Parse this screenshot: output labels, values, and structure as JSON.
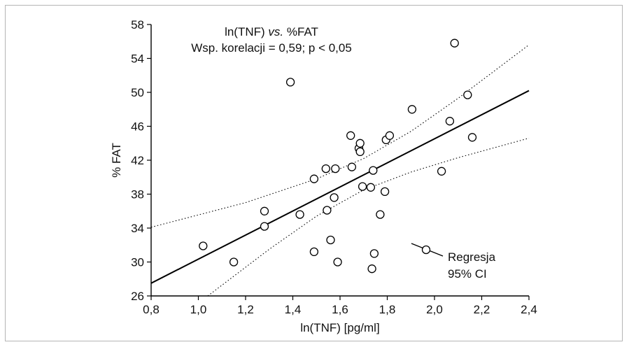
{
  "chart_data": {
    "type": "scatter",
    "title": "ln(TNF)",
    "title_italic": "vs.",
    "title_suffix": "%FAT",
    "subtitle": "Wsp. korelacji = 0,59; p < 0,05",
    "xlabel": "ln(TNF) [pg/ml]",
    "ylabel": "% FAT",
    "xlim": [
      0.8,
      2.4
    ],
    "ylim": [
      26,
      58
    ],
    "x_ticks": [
      0.8,
      1.0,
      1.2,
      1.4,
      1.6,
      1.8,
      2.0,
      2.2,
      2.4
    ],
    "x_tick_labels": [
      "0,8",
      "1,0",
      "1,2",
      "1,4",
      "1,6",
      "1,8",
      "2,0",
      "2,2",
      "2,4"
    ],
    "y_ticks": [
      26,
      30,
      34,
      38,
      42,
      46,
      50,
      54,
      58
    ],
    "y_tick_labels": [
      "26",
      "30",
      "34",
      "38",
      "42",
      "46",
      "50",
      "54",
      "58"
    ],
    "grid": false,
    "points": [
      {
        "x": 1.02,
        "y": 31.9
      },
      {
        "x": 1.15,
        "y": 30.0
      },
      {
        "x": 1.28,
        "y": 36.0
      },
      {
        "x": 1.28,
        "y": 34.2
      },
      {
        "x": 1.39,
        "y": 51.2
      },
      {
        "x": 1.43,
        "y": 35.6
      },
      {
        "x": 1.49,
        "y": 39.8
      },
      {
        "x": 1.49,
        "y": 31.2
      },
      {
        "x": 1.54,
        "y": 41.0
      },
      {
        "x": 1.545,
        "y": 36.1
      },
      {
        "x": 1.56,
        "y": 32.6
      },
      {
        "x": 1.575,
        "y": 37.6
      },
      {
        "x": 1.58,
        "y": 41.0
      },
      {
        "x": 1.59,
        "y": 30.0
      },
      {
        "x": 1.645,
        "y": 44.9
      },
      {
        "x": 1.65,
        "y": 41.2
      },
      {
        "x": 1.68,
        "y": 43.4
      },
      {
        "x": 1.685,
        "y": 43.0
      },
      {
        "x": 1.685,
        "y": 44.0
      },
      {
        "x": 1.695,
        "y": 38.9
      },
      {
        "x": 1.73,
        "y": 38.8
      },
      {
        "x": 1.735,
        "y": 29.2
      },
      {
        "x": 1.74,
        "y": 40.8
      },
      {
        "x": 1.745,
        "y": 31.0
      },
      {
        "x": 1.77,
        "y": 35.6
      },
      {
        "x": 1.79,
        "y": 38.3
      },
      {
        "x": 1.795,
        "y": 44.4
      },
      {
        "x": 1.81,
        "y": 44.9
      },
      {
        "x": 1.905,
        "y": 48.0
      },
      {
        "x": 2.03,
        "y": 40.7
      },
      {
        "x": 2.065,
        "y": 46.6
      },
      {
        "x": 2.085,
        "y": 55.8
      },
      {
        "x": 2.14,
        "y": 49.7
      },
      {
        "x": 2.16,
        "y": 44.7
      }
    ],
    "regression": {
      "x": [
        0.8,
        2.4
      ],
      "y": [
        27.5,
        50.2
      ]
    },
    "ci_upper": {
      "x": [
        0.8,
        1.2,
        1.5,
        1.7,
        1.9,
        2.1,
        2.4
      ],
      "y": [
        34.1,
        37.0,
        39.8,
        42.2,
        45.4,
        49.3,
        55.6
      ]
    },
    "ci_lower": {
      "x": [
        1.04,
        1.3,
        1.5,
        1.7,
        1.9,
        2.1,
        2.4
      ],
      "y": [
        26.0,
        31.5,
        35.4,
        38.5,
        40.6,
        42.3,
        44.6
      ]
    },
    "legend": {
      "position": "bottom-right",
      "items": [
        "Regresja",
        "95% CI"
      ]
    },
    "colors": {
      "marks": "#000000",
      "frame": "#b5b5b5"
    }
  }
}
